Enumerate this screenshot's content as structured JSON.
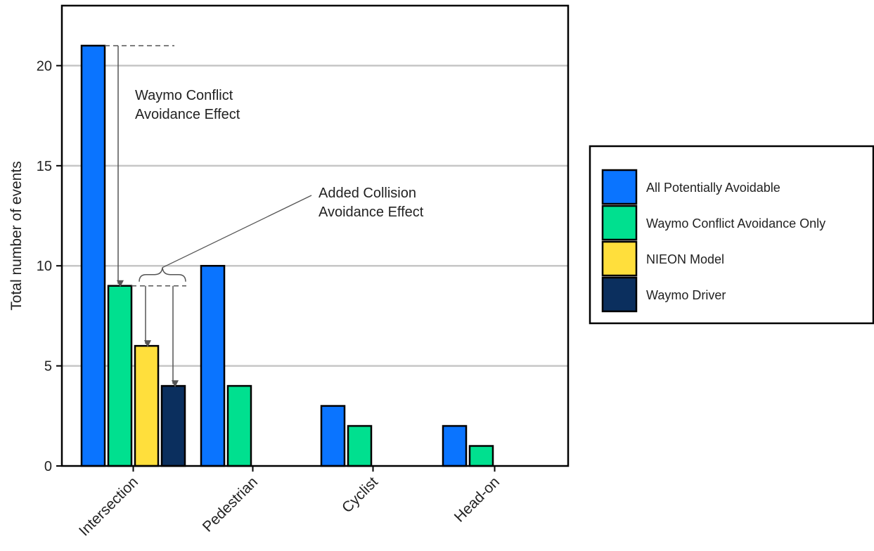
{
  "chart_data": {
    "type": "bar",
    "categories": [
      "Intersection",
      "Pedestrian",
      "Cyclist",
      "Head-on"
    ],
    "series": [
      {
        "name": "All Potentially Avoidable",
        "color": "#0a74ff",
        "values": [
          21,
          10,
          3,
          2
        ]
      },
      {
        "name": "Waymo Conflict Avoidance Only",
        "color": "#00e08f",
        "values": [
          9,
          4,
          2,
          1
        ]
      },
      {
        "name": "NIEON Model",
        "color": "#ffdf3c",
        "values": [
          6,
          0,
          0,
          0
        ]
      },
      {
        "name": "Waymo Driver",
        "color": "#0b2f5e",
        "values": [
          4,
          0,
          0,
          0
        ]
      }
    ],
    "ylabel": "Total number of events",
    "xlabel": "",
    "ylim": [
      0,
      23
    ],
    "yticks": [
      0,
      5,
      10,
      15,
      20
    ],
    "grid": true,
    "legend_position": "right",
    "annotations": [
      {
        "id": "conflict",
        "text": [
          "Waymo Conflict",
          "Avoidance Effect"
        ]
      },
      {
        "id": "collision",
        "text": [
          "Added Collision",
          "Avoidance Effect"
        ]
      }
    ]
  }
}
